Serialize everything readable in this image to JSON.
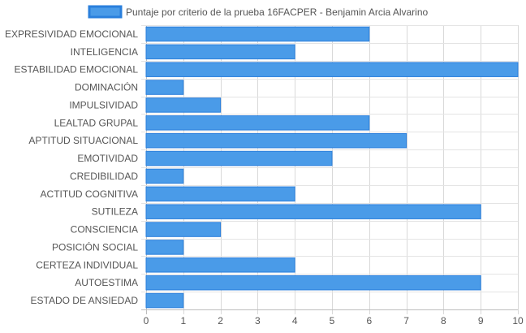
{
  "chart_data": {
    "type": "bar",
    "orientation": "horizontal",
    "categories": [
      "EXPRESIVIDAD EMOCIONAL",
      "INTELIGENCIA",
      "ESTABILIDAD EMOCIONAL",
      "DOMINACIÓN",
      "IMPULSIVIDAD",
      "LEALTAD GRUPAL",
      "APTITUD SITUACIONAL",
      "EMOTIVIDAD",
      "CREDIBILIDAD",
      "ACTITUD COGNITIVA",
      "SUTILEZA",
      "CONSCIENCIA",
      "POSICIÓN SOCIAL",
      "CERTEZA INDIVIDUAL",
      "AUTOESTIMA",
      "ESTADO DE ANSIEDAD"
    ],
    "series": [
      {
        "name": "Puntaje por criterio de la prueba 16FACPER - Benjamin Arcia Alvarino",
        "values": [
          6,
          4,
          10,
          1,
          2,
          6,
          7,
          5,
          1,
          4,
          9,
          2,
          1,
          4,
          9,
          1
        ],
        "color": "#4a9be8",
        "border_color": "#2a7fdc"
      }
    ],
    "xlim": [
      0,
      10
    ],
    "x_ticks": [
      "0",
      "1",
      "2",
      "3",
      "4",
      "5",
      "6",
      "7",
      "8",
      "9",
      "10"
    ],
    "grid": true,
    "legend_position": "top"
  }
}
